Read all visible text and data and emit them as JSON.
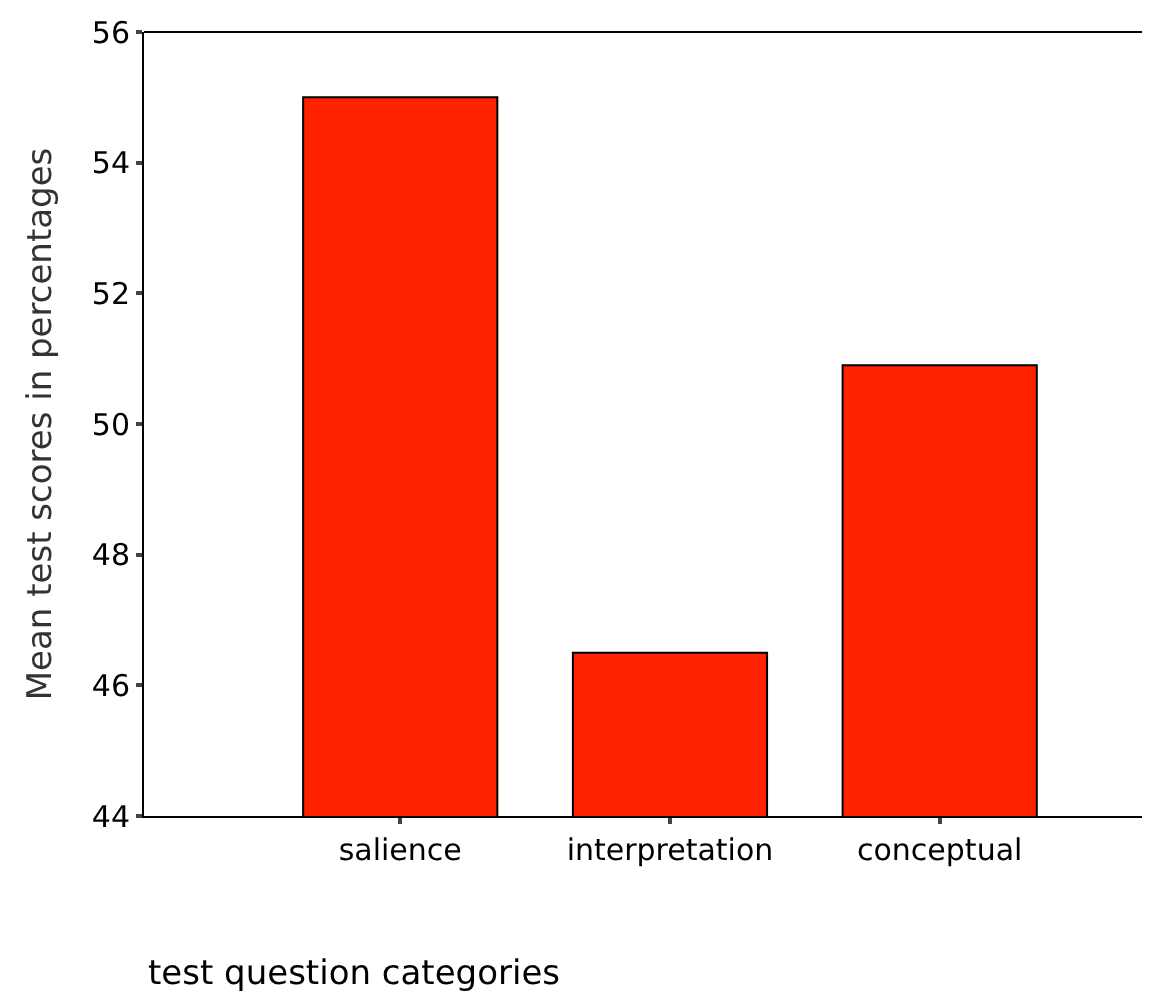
{
  "chart_data": {
    "type": "bar",
    "xlabel": "test question categories",
    "ylabel": "Mean test scores in percentages",
    "categories": [
      "salience",
      "interpretation",
      "conceptual"
    ],
    "values": [
      55.0,
      46.5,
      50.9
    ],
    "color": "#ff2200",
    "ylim": [
      44,
      56
    ],
    "yticks": [
      44,
      46,
      48,
      50,
      52,
      54,
      56
    ]
  }
}
